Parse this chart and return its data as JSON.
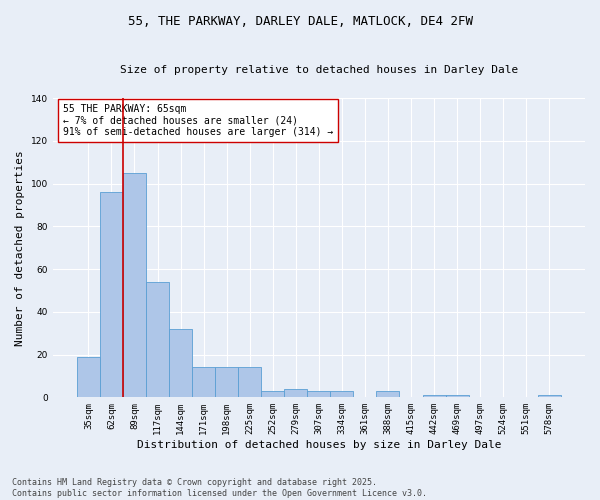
{
  "title_line1": "55, THE PARKWAY, DARLEY DALE, MATLOCK, DE4 2FW",
  "title_line2": "Size of property relative to detached houses in Darley Dale",
  "xlabel": "Distribution of detached houses by size in Darley Dale",
  "ylabel": "Number of detached properties",
  "categories": [
    "35sqm",
    "62sqm",
    "89sqm",
    "117sqm",
    "144sqm",
    "171sqm",
    "198sqm",
    "225sqm",
    "252sqm",
    "279sqm",
    "307sqm",
    "334sqm",
    "361sqm",
    "388sqm",
    "415sqm",
    "442sqm",
    "469sqm",
    "497sqm",
    "524sqm",
    "551sqm",
    "578sqm"
  ],
  "values": [
    19,
    96,
    105,
    54,
    32,
    14,
    14,
    14,
    3,
    4,
    3,
    3,
    0,
    3,
    0,
    1,
    1,
    0,
    0,
    0,
    1
  ],
  "bar_color": "#aec6e8",
  "bar_edge_color": "#5a9fd4",
  "background_color": "#e8eef7",
  "grid_color": "#ffffff",
  "vline_color": "#cc0000",
  "vline_x_index": 1,
  "annotation_text": "55 THE PARKWAY: 65sqm\n← 7% of detached houses are smaller (24)\n91% of semi-detached houses are larger (314) →",
  "annotation_box_color": "#ffffff",
  "annotation_box_edge": "#cc0000",
  "footer_text": "Contains HM Land Registry data © Crown copyright and database right 2025.\nContains public sector information licensed under the Open Government Licence v3.0.",
  "ylim": [
    0,
    140
  ],
  "yticks": [
    0,
    20,
    40,
    60,
    80,
    100,
    120,
    140
  ],
  "title_fontsize": 9,
  "subtitle_fontsize": 8,
  "ylabel_fontsize": 8,
  "xlabel_fontsize": 8,
  "tick_fontsize": 6.5,
  "annotation_fontsize": 7,
  "footer_fontsize": 6
}
